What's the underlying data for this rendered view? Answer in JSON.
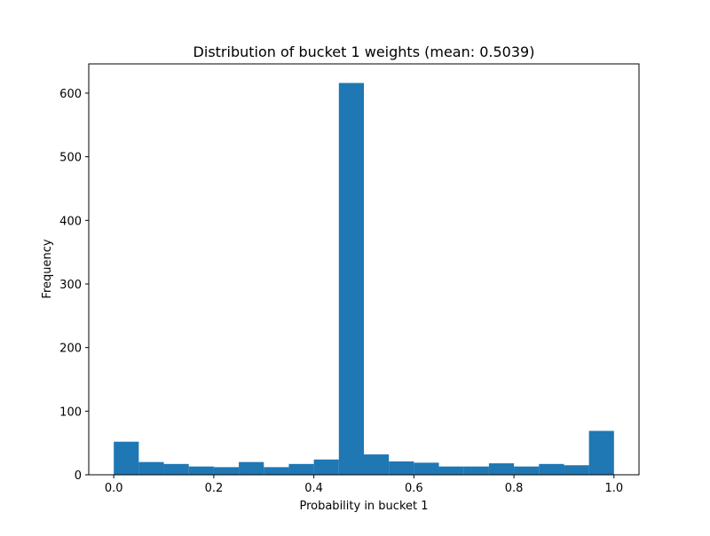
{
  "chart_data": {
    "type": "bar",
    "title": "Distribution of bucket 1 weights (mean: 0.5039)",
    "xlabel": "Probability in bucket 1",
    "ylabel": "Frequency",
    "xlim": [
      -0.05,
      1.05
    ],
    "ylim": [
      0,
      646
    ],
    "xticks": [
      0.0,
      0.2,
      0.4,
      0.6,
      0.8,
      1.0
    ],
    "xtick_labels": [
      "0.0",
      "0.2",
      "0.4",
      "0.6",
      "0.8",
      "1.0"
    ],
    "yticks": [
      0,
      100,
      200,
      300,
      400,
      500,
      600
    ],
    "ytick_labels": [
      "0",
      "100",
      "200",
      "300",
      "400",
      "500",
      "600"
    ],
    "bar_color": "#1f77b4",
    "bins": [
      {
        "start": 0.0,
        "end": 0.05,
        "value": 52
      },
      {
        "start": 0.05,
        "end": 0.1,
        "value": 20
      },
      {
        "start": 0.1,
        "end": 0.15,
        "value": 17
      },
      {
        "start": 0.15,
        "end": 0.2,
        "value": 13
      },
      {
        "start": 0.2,
        "end": 0.25,
        "value": 12
      },
      {
        "start": 0.25,
        "end": 0.3,
        "value": 20
      },
      {
        "start": 0.3,
        "end": 0.35,
        "value": 12
      },
      {
        "start": 0.35,
        "end": 0.4,
        "value": 17
      },
      {
        "start": 0.4,
        "end": 0.45,
        "value": 24
      },
      {
        "start": 0.45,
        "end": 0.5,
        "value": 616
      },
      {
        "start": 0.5,
        "end": 0.55,
        "value": 32
      },
      {
        "start": 0.55,
        "end": 0.6,
        "value": 21
      },
      {
        "start": 0.6,
        "end": 0.65,
        "value": 19
      },
      {
        "start": 0.65,
        "end": 0.7,
        "value": 13
      },
      {
        "start": 0.7,
        "end": 0.75,
        "value": 13
      },
      {
        "start": 0.75,
        "end": 0.8,
        "value": 18
      },
      {
        "start": 0.8,
        "end": 0.85,
        "value": 13
      },
      {
        "start": 0.85,
        "end": 0.9,
        "value": 17
      },
      {
        "start": 0.9,
        "end": 0.95,
        "value": 15
      },
      {
        "start": 0.95,
        "end": 1.0,
        "value": 69
      }
    ]
  }
}
